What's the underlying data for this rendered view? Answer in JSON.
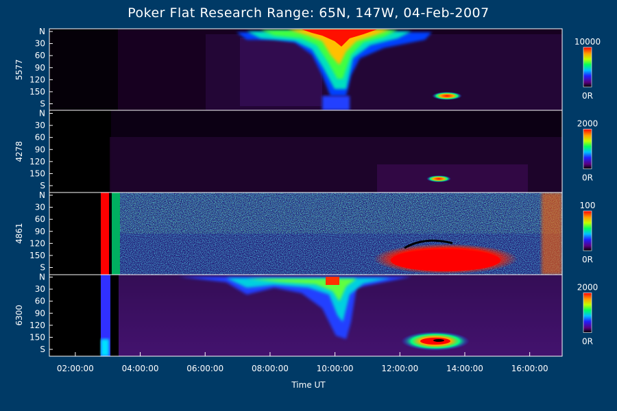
{
  "chart_data": {
    "type": "heatmap",
    "title": "Poker Flat Research Range: 65N, 147W, 04-Feb-2007",
    "xlabel": "Time UT",
    "x_ticks": [
      "02:00:00",
      "04:00:00",
      "06:00:00",
      "08:00:00",
      "10:00:00",
      "12:00:00",
      "14:00:00",
      "16:00:00"
    ],
    "x_range_hours": [
      1.2,
      17.0
    ],
    "y_ticks": [
      "N",
      "30",
      "60",
      "90",
      "120",
      "150",
      "S"
    ],
    "panels": [
      {
        "label": "5577",
        "colorbar_max": "10000",
        "colorbar_min": "0R"
      },
      {
        "label": "4278",
        "colorbar_max": "2000",
        "colorbar_min": "0R"
      },
      {
        "label": "4861",
        "colorbar_max": "100",
        "colorbar_min": "0R"
      },
      {
        "label": "6300",
        "colorbar_max": "2000",
        "colorbar_min": "0R"
      }
    ]
  }
}
